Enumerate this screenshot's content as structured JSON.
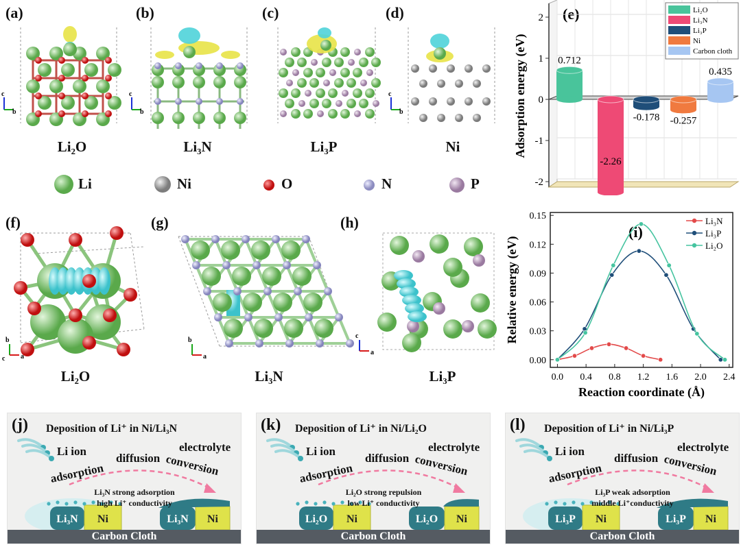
{
  "panels": {
    "a": "(a)",
    "b": "(b)",
    "c": "(c)",
    "d": "(d)",
    "e": "(e)",
    "f": "(f)",
    "g": "(g)",
    "h": "(h)",
    "i": "(i)",
    "j": "(j)",
    "k": "(k)",
    "l": "(l)"
  },
  "structure_captions": {
    "li2o": "Li₂O",
    "li3n": "Li₃N",
    "li3p": "Li₃P",
    "ni": "Ni",
    "li2o_b": "Li₂O",
    "li3n_b": "Li₃N",
    "li3p_b": "Li₃P"
  },
  "axes_small": {
    "c": "c",
    "b": "b",
    "a": "a"
  },
  "atom_legend": [
    "Li",
    "Ni",
    "O",
    "N",
    "P"
  ],
  "colors": {
    "li": "#7cc66e",
    "ni": "#a5a5a5",
    "o": "#e01818",
    "n": "#b3b3d6",
    "p": "#c3a6c6",
    "cyan": "#4fd3d9",
    "yellow": "#e8e347",
    "s_li2o": "#49c49b",
    "s_li3n": "#ee4a75",
    "s_li3p": "#1f4e79",
    "s_ni": "#f07a3f",
    "s_cc": "#a6c6f2",
    "line_li3n": "#e34a4a",
    "line_li3p": "#1f4e79",
    "line_li2o": "#46c4a0"
  },
  "chart_data": [
    {
      "type": "bar",
      "title": "",
      "ylabel": "Adsorption energy (eV)",
      "ylim": [
        -2,
        2
      ],
      "yticks": [
        "2",
        "1",
        "0",
        "-1",
        "-2"
      ],
      "categories": [
        "Li₂O",
        "Li₃N",
        "Li₃P",
        "Ni",
        "Carbon cloth"
      ],
      "values": [
        0.712,
        -2.26,
        -0.178,
        -0.257,
        0.435
      ],
      "value_labels": [
        "0.712",
        "-2.26",
        "-0.178",
        "-0.257",
        "0.435"
      ],
      "legend_position": "top-right"
    },
    {
      "type": "line",
      "xlabel": "Reaction coordinate (Å)",
      "ylabel": "Relative energy (eV)",
      "xlim": [
        -0.1,
        2.45
      ],
      "ylim": [
        -0.008,
        0.153
      ],
      "xticks": [
        "0.0",
        "0.4",
        "0.8",
        "1.2",
        "1.6",
        "2.0",
        "2.4"
      ],
      "yticks": [
        "0.00",
        "0.03",
        "0.06",
        "0.09",
        "0.12",
        "0.15"
      ],
      "legend_position": "top-right",
      "series": [
        {
          "name": "Li₃N",
          "x": [
            0.0,
            0.24,
            0.48,
            0.72,
            0.96,
            1.2,
            1.44
          ],
          "y": [
            0.0,
            0.004,
            0.012,
            0.016,
            0.012,
            0.004,
            0.0
          ]
        },
        {
          "name": "Li₃P",
          "x": [
            0.0,
            0.38,
            0.76,
            1.14,
            1.52,
            1.9,
            2.28
          ],
          "y": [
            0.0,
            0.032,
            0.088,
            0.113,
            0.088,
            0.032,
            0.0
          ]
        },
        {
          "name": "Li₂O",
          "x": [
            0.0,
            0.39,
            0.78,
            1.17,
            1.56,
            1.95,
            2.34
          ],
          "y": [
            0.0,
            0.028,
            0.098,
            0.141,
            0.098,
            0.027,
            0.0
          ]
        }
      ]
    }
  ],
  "schemes": [
    {
      "title": "Deposition of Li⁺ in Ni/Li₃N",
      "note1": "Li₃N strong adsorption",
      "note2": "high Li⁺ conductivity",
      "left_block": "Li₃N",
      "right_block": "Li₃N"
    },
    {
      "title": "Deposition of Li⁺ in Ni/Li₂O",
      "note1": "Li₂O strong repulsion",
      "note2": "low Li⁺ conductivity",
      "left_block": "Li₂O",
      "right_block": "Li₂O"
    },
    {
      "title": "Deposition of Li⁺ in Ni/Li₃P",
      "note1": "Li₃P weak adsorption",
      "note2": "middle Li⁺conductivity",
      "left_block": "Li₃P",
      "right_block": "Li₃P"
    }
  ],
  "scheme_words": {
    "li_ion": "Li ion",
    "adsorption": "adsorption",
    "diffusion": "diffusion",
    "conversion": "conversion",
    "electrolyte": "electrolyte",
    "ni": "Ni",
    "cloth": "Carbon Cloth"
  }
}
